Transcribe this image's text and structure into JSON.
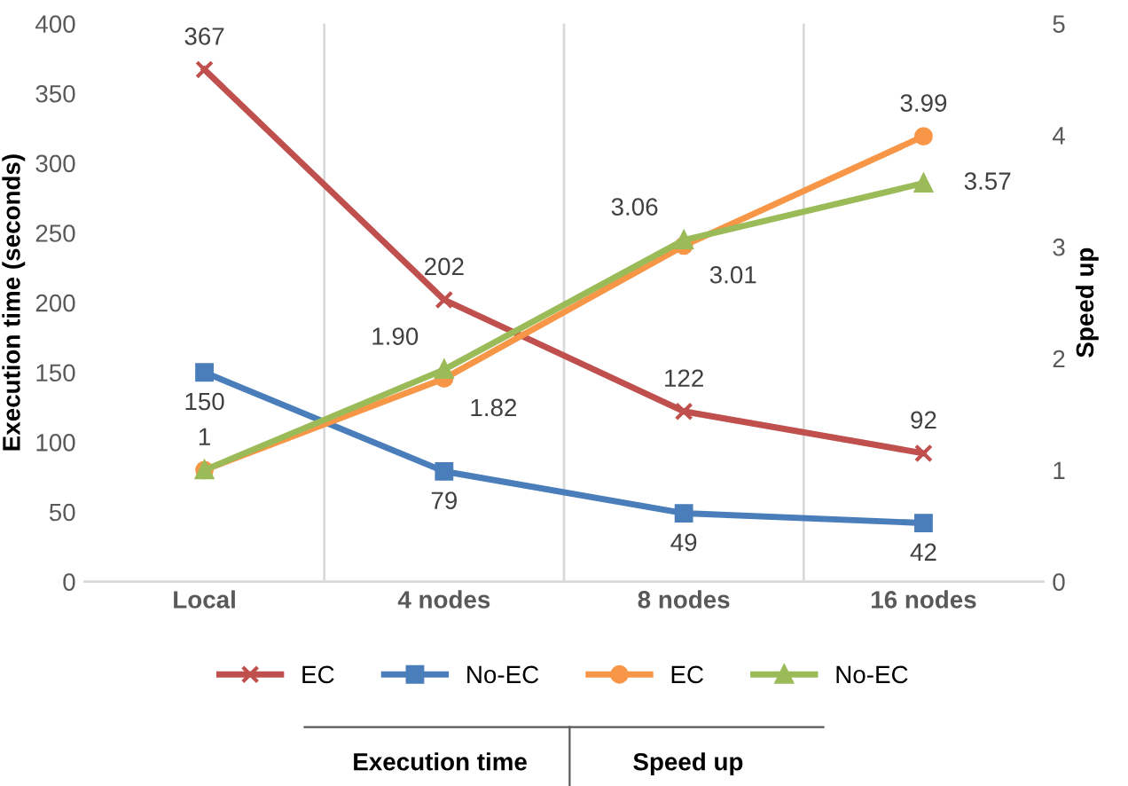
{
  "chart_data": {
    "type": "line",
    "categories": [
      "Local",
      "4 nodes",
      "8 nodes",
      "16 nodes"
    ],
    "ylabel": "Execution time (seconds)",
    "y2label": "Speed up",
    "ylim": [
      0,
      400
    ],
    "yticks": [
      0,
      50,
      100,
      150,
      200,
      250,
      300,
      350,
      400
    ],
    "y2lim": [
      0,
      5
    ],
    "y2ticks": [
      0,
      1,
      2,
      3,
      4,
      5
    ],
    "series": [
      {
        "name": "EC",
        "color": "#c0504d",
        "marker": "cross",
        "values": [
          367,
          202,
          122,
          92
        ],
        "value_labels": [
          "367",
          "202",
          "122",
          "92"
        ]
      },
      {
        "name": "No-EC",
        "color": "#4a7ebb",
        "marker": "square",
        "values": [
          150,
          79,
          49,
          42
        ],
        "value_labels": [
          "150",
          "79",
          "49",
          "42"
        ]
      },
      {
        "name": "EC",
        "color": "#f79646",
        "marker": "circle",
        "axis": "y2",
        "values": [
          1,
          1.82,
          3.01,
          3.99
        ],
        "value_labels": [
          "1",
          "1.82",
          "3.01",
          "3.99"
        ]
      },
      {
        "name": "No-EC",
        "color": "#9bbb59",
        "marker": "triangle",
        "axis": "y2",
        "values": [
          1,
          1.9,
          3.06,
          3.57
        ],
        "value_labels": [
          null,
          "1.90",
          "3.06",
          "3.57"
        ]
      }
    ],
    "grid": "x",
    "legend": "bottom",
    "annotations": [
      "Execution time",
      "Speed up"
    ]
  }
}
